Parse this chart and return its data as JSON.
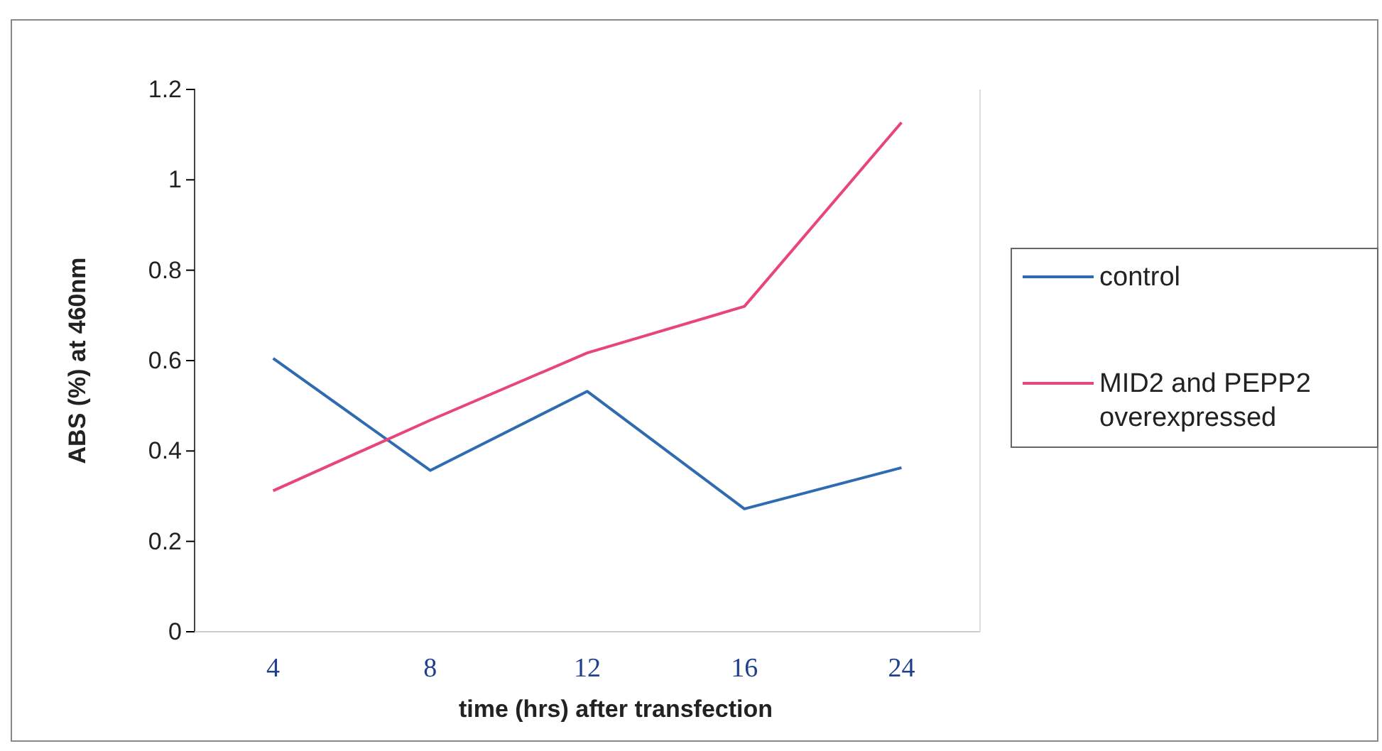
{
  "chart_data": {
    "type": "line",
    "xlabel": "time (hrs) after transfection",
    "ylabel": "ABS (%)  at 460nm",
    "categories": [
      "4",
      "8",
      "12",
      "16",
      "24"
    ],
    "series": [
      {
        "name": "control",
        "color": "#2e6bb0",
        "values": [
          0.605,
          0.357,
          0.532,
          0.272,
          0.363
        ]
      },
      {
        "name": "MID2 and PEPP2 overexpressed",
        "color": "#e8457a",
        "values": [
          0.312,
          0.468,
          0.617,
          0.72,
          1.127
        ]
      }
    ],
    "ylim": [
      0,
      1.2
    ],
    "yticks": [
      0,
      0.2,
      0.4,
      0.6,
      0.8,
      1,
      1.2
    ],
    "grid": false,
    "legend": "right",
    "marker": "none",
    "line_style": "solid"
  }
}
